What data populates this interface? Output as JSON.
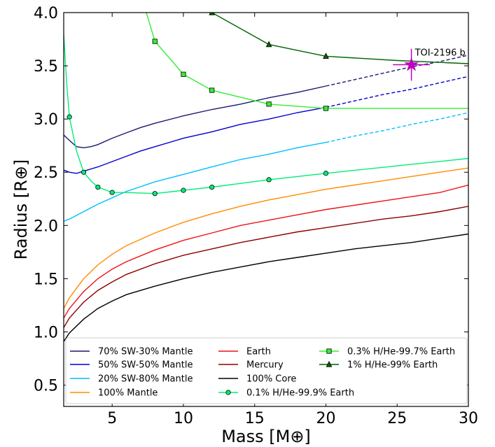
{
  "chart_data": {
    "type": "line",
    "xlabel": "Mass [M⊕]",
    "ylabel": "Radius [R⊕]",
    "xlim": [
      1.6,
      30
    ],
    "ylim": [
      0.3,
      4.0
    ],
    "x_ticks": [
      5,
      10,
      15,
      20,
      25,
      30
    ],
    "y_ticks": [
      0.5,
      1.0,
      1.5,
      2.0,
      2.5,
      3.0,
      3.5,
      4.0
    ],
    "grid": false,
    "legend_position": "lower-center",
    "annotation": {
      "label": "TOI-2196 b",
      "mass": 26.0,
      "mass_err": 1.3,
      "radius": 3.51,
      "radius_err": 0.15,
      "color": "#bf00bf",
      "marker": "star"
    },
    "series": [
      {
        "name": "70% SW-30% Mantle",
        "color": "#191970",
        "style": "solid",
        "points": [
          [
            1.6,
            2.85
          ],
          [
            2.0,
            2.8
          ],
          [
            2.5,
            2.74
          ],
          [
            3.0,
            2.73
          ],
          [
            3.5,
            2.74
          ],
          [
            4,
            2.76
          ],
          [
            5,
            2.82
          ],
          [
            6,
            2.87
          ],
          [
            7,
            2.92
          ],
          [
            8,
            2.96
          ],
          [
            10,
            3.03
          ],
          [
            12,
            3.09
          ],
          [
            14,
            3.14
          ],
          [
            16,
            3.2
          ],
          [
            18,
            3.25
          ],
          [
            20,
            3.31
          ]
        ],
        "dashed_points": [
          [
            20,
            3.31
          ],
          [
            22,
            3.37
          ],
          [
            24,
            3.43
          ],
          [
            26,
            3.49
          ],
          [
            28,
            3.54
          ],
          [
            30,
            3.6
          ]
        ]
      },
      {
        "name": "50% SW-50% Mantle",
        "color": "#0000cd",
        "style": "solid",
        "points": [
          [
            1.6,
            2.52
          ],
          [
            2.0,
            2.5
          ],
          [
            2.5,
            2.49
          ],
          [
            3.0,
            2.51
          ],
          [
            4,
            2.55
          ],
          [
            5,
            2.6
          ],
          [
            6,
            2.65
          ],
          [
            7,
            2.7
          ],
          [
            8,
            2.74
          ],
          [
            10,
            2.82
          ],
          [
            12,
            2.88
          ],
          [
            14,
            2.95
          ],
          [
            16,
            3.0
          ],
          [
            18,
            3.06
          ],
          [
            20,
            3.11
          ]
        ],
        "dashed_points": [
          [
            20,
            3.11
          ],
          [
            22,
            3.17
          ],
          [
            24,
            3.23
          ],
          [
            26,
            3.28
          ],
          [
            28,
            3.34
          ],
          [
            30,
            3.4
          ]
        ]
      },
      {
        "name": "20% SW-80% Mantle",
        "color": "#00bfff",
        "style": "solid",
        "points": [
          [
            1.6,
            2.04
          ],
          [
            2.0,
            2.06
          ],
          [
            3,
            2.13
          ],
          [
            4,
            2.2
          ],
          [
            5,
            2.26
          ],
          [
            6,
            2.32
          ],
          [
            8,
            2.41
          ],
          [
            10,
            2.48
          ],
          [
            12,
            2.55
          ],
          [
            14,
            2.62
          ],
          [
            16,
            2.67
          ],
          [
            18,
            2.73
          ],
          [
            20,
            2.78
          ]
        ],
        "dashed_points": [
          [
            20,
            2.78
          ],
          [
            22,
            2.84
          ],
          [
            24,
            2.89
          ],
          [
            26,
            2.95
          ],
          [
            28,
            3.0
          ],
          [
            30,
            3.06
          ]
        ]
      },
      {
        "name": "100% Mantle",
        "color": "#ff8c00",
        "style": "solid",
        "points": [
          [
            1.6,
            1.22
          ],
          [
            2,
            1.32
          ],
          [
            3,
            1.5
          ],
          [
            4,
            1.63
          ],
          [
            5,
            1.73
          ],
          [
            6,
            1.81
          ],
          [
            8,
            1.93
          ],
          [
            10,
            2.03
          ],
          [
            12,
            2.11
          ],
          [
            14,
            2.18
          ],
          [
            16,
            2.24
          ],
          [
            18,
            2.29
          ],
          [
            20,
            2.34
          ],
          [
            22,
            2.38
          ],
          [
            24,
            2.42
          ],
          [
            26,
            2.46
          ],
          [
            28,
            2.5
          ],
          [
            30,
            2.54
          ]
        ]
      },
      {
        "name": "Earth",
        "color": "#ee1111",
        "style": "solid",
        "points": [
          [
            1.6,
            1.13
          ],
          [
            2,
            1.22
          ],
          [
            3,
            1.38
          ],
          [
            4,
            1.5
          ],
          [
            5,
            1.59
          ],
          [
            6,
            1.66
          ],
          [
            8,
            1.77
          ],
          [
            10,
            1.86
          ],
          [
            12,
            1.93
          ],
          [
            14,
            2.0
          ],
          [
            16,
            2.05
          ],
          [
            18,
            2.1
          ],
          [
            20,
            2.15
          ],
          [
            22,
            2.19
          ],
          [
            24,
            2.23
          ],
          [
            26,
            2.27
          ],
          [
            28,
            2.31
          ],
          [
            30,
            2.38
          ]
        ]
      },
      {
        "name": "Mercury",
        "color": "#8b0000",
        "style": "solid",
        "points": [
          [
            1.6,
            1.04
          ],
          [
            2,
            1.13
          ],
          [
            3,
            1.28
          ],
          [
            4,
            1.39
          ],
          [
            5,
            1.47
          ],
          [
            6,
            1.54
          ],
          [
            8,
            1.64
          ],
          [
            10,
            1.72
          ],
          [
            12,
            1.78
          ],
          [
            14,
            1.84
          ],
          [
            16,
            1.89
          ],
          [
            18,
            1.94
          ],
          [
            20,
            1.98
          ],
          [
            22,
            2.02
          ],
          [
            24,
            2.06
          ],
          [
            26,
            2.09
          ],
          [
            28,
            2.13
          ],
          [
            30,
            2.18
          ]
        ]
      },
      {
        "name": "100% Core",
        "color": "#000000",
        "style": "solid",
        "points": [
          [
            1.6,
            0.91
          ],
          [
            2,
            0.99
          ],
          [
            3,
            1.12
          ],
          [
            4,
            1.22
          ],
          [
            5,
            1.29
          ],
          [
            6,
            1.35
          ],
          [
            8,
            1.43
          ],
          [
            10,
            1.5
          ],
          [
            12,
            1.56
          ],
          [
            14,
            1.61
          ],
          [
            16,
            1.66
          ],
          [
            18,
            1.7
          ],
          [
            20,
            1.74
          ],
          [
            22,
            1.78
          ],
          [
            24,
            1.81
          ],
          [
            26,
            1.84
          ],
          [
            28,
            1.88
          ],
          [
            30,
            1.92
          ]
        ]
      },
      {
        "name": "0.1% H/He-99.9% Earth",
        "color": "#00ee77",
        "style": "solid",
        "marker": "circle",
        "points": [
          [
            1.6,
            3.8
          ],
          [
            1.8,
            3.35
          ],
          [
            2,
            3.02
          ],
          [
            2.5,
            2.7
          ],
          [
            3,
            2.5
          ],
          [
            3.5,
            2.42
          ],
          [
            4,
            2.36
          ],
          [
            5,
            2.31
          ],
          [
            6,
            2.31
          ],
          [
            8,
            2.3
          ],
          [
            10,
            2.33
          ],
          [
            12,
            2.36
          ],
          [
            16,
            2.43
          ],
          [
            20,
            2.49
          ],
          [
            25,
            2.56
          ],
          [
            30,
            2.63
          ]
        ],
        "marker_points": [
          [
            2,
            3.02
          ],
          [
            3,
            2.5
          ],
          [
            4,
            2.36
          ],
          [
            5,
            2.31
          ],
          [
            8,
            2.3
          ],
          [
            10,
            2.33
          ],
          [
            12,
            2.36
          ],
          [
            16,
            2.43
          ],
          [
            20,
            2.49
          ]
        ]
      },
      {
        "name": "0.3% H/He-99.7% Earth",
        "color": "#33ee33",
        "style": "solid",
        "marker": "square",
        "points": [
          [
            7.4,
            4.0
          ],
          [
            8,
            3.73
          ],
          [
            10,
            3.42
          ],
          [
            12,
            3.27
          ],
          [
            16,
            3.14
          ],
          [
            20,
            3.1
          ],
          [
            25,
            3.1
          ],
          [
            30,
            3.1
          ]
        ],
        "marker_points": [
          [
            8,
            3.73
          ],
          [
            10,
            3.42
          ],
          [
            12,
            3.27
          ],
          [
            16,
            3.14
          ],
          [
            20,
            3.1
          ]
        ]
      },
      {
        "name": "1% H/He-99% Earth",
        "color": "#006400",
        "style": "solid",
        "marker": "triangle",
        "points": [
          [
            12,
            4.0
          ],
          [
            16,
            3.7
          ],
          [
            20,
            3.59
          ],
          [
            25,
            3.55
          ],
          [
            30,
            3.52
          ]
        ],
        "marker_points": [
          [
            12,
            4.0
          ],
          [
            16,
            3.7
          ],
          [
            20,
            3.59
          ]
        ]
      }
    ]
  }
}
